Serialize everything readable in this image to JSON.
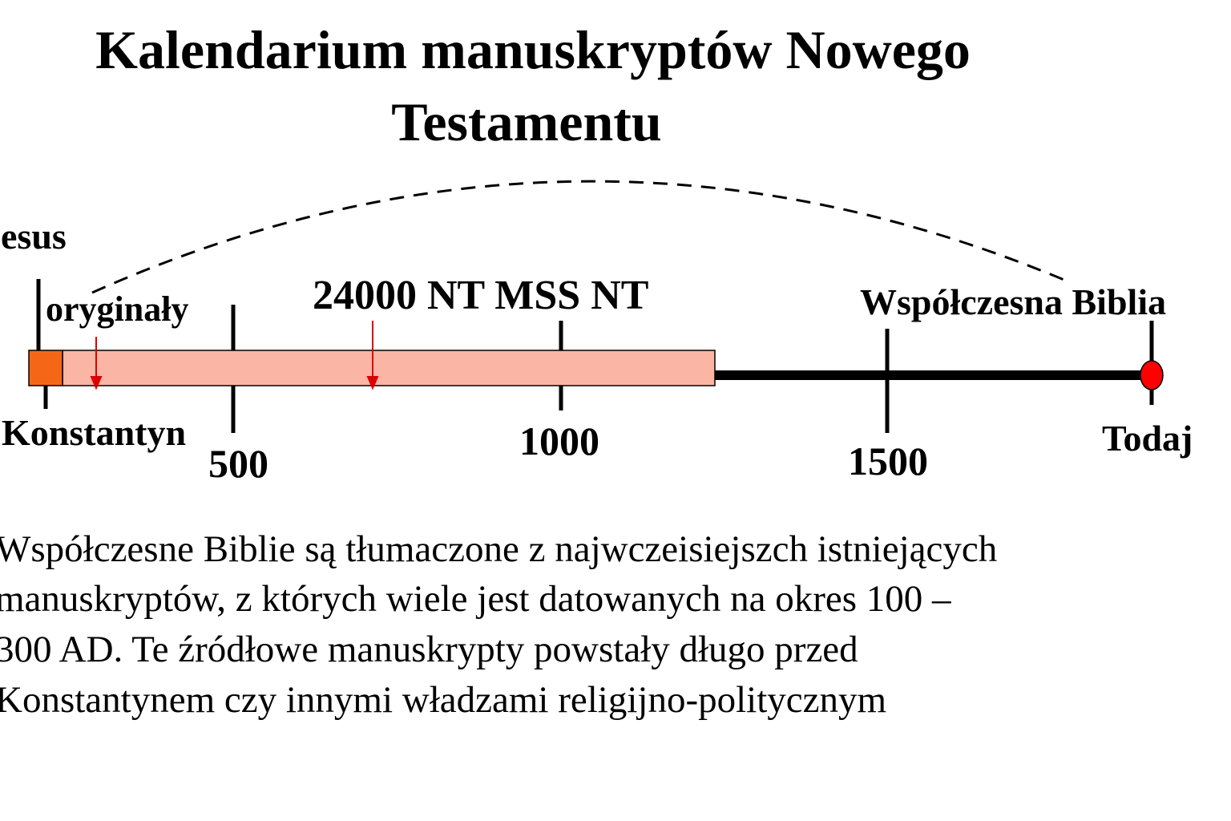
{
  "title": {
    "lines": [
      "Kalendarium manuskryptów Nowego",
      "Testamentu"
    ]
  },
  "timeline": {
    "labels": {
      "jesus": "Jesus",
      "originals": "oryginały",
      "manuscripts": "24000 NT MSS NT",
      "modern_bible": "Współczesna Biblia",
      "constantine": "Konstantyn",
      "today": "Todaj"
    },
    "ticks": [
      "500",
      "1000",
      "1500"
    ]
  },
  "body": {
    "lines": [
      "Współczesne Biblie są tłumaczone z najwczeisiejszch istniejących",
      "manuskryptów, z których wiele jest datowanych na okres 100 –",
      "300 AD. Te źródłowe manuskrypty powstały długo przed",
      "Konstantynem czy innymi władzami religijno-politycznym"
    ]
  }
}
